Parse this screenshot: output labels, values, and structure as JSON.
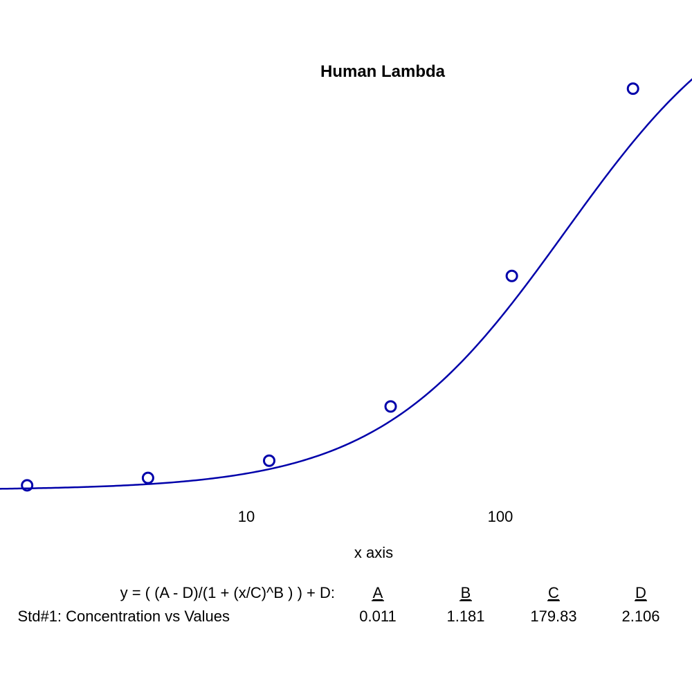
{
  "chart_data": {
    "type": "scatter",
    "title": "Human Lambda",
    "xlabel": "x axis",
    "ylabel": "",
    "x_scale": "log",
    "x_ticks": [
      10,
      100
    ],
    "x_tick_labels": [
      "10",
      "100"
    ],
    "grid": false,
    "series": [
      {
        "name": "Std#1: Concentration vs Values",
        "x": [
          1.37,
          4.1,
          12.3,
          37,
          111,
          333
        ],
        "y": [
          0.03,
          0.06,
          0.13,
          0.35,
          0.88,
          1.64
        ]
      }
    ],
    "fit": {
      "equation": "y = ( (A - D)/(1 + (x/C)^B ) ) + D:",
      "param_names": [
        "A",
        "B",
        "C",
        "D"
      ],
      "param_values": [
        "0.011",
        "1.181",
        "179.83",
        "2.106"
      ],
      "A": 0.011,
      "B": 1.181,
      "C": 179.83,
      "D": 2.106
    },
    "colors": {
      "series": "#0000aa",
      "text": "#000000"
    }
  }
}
